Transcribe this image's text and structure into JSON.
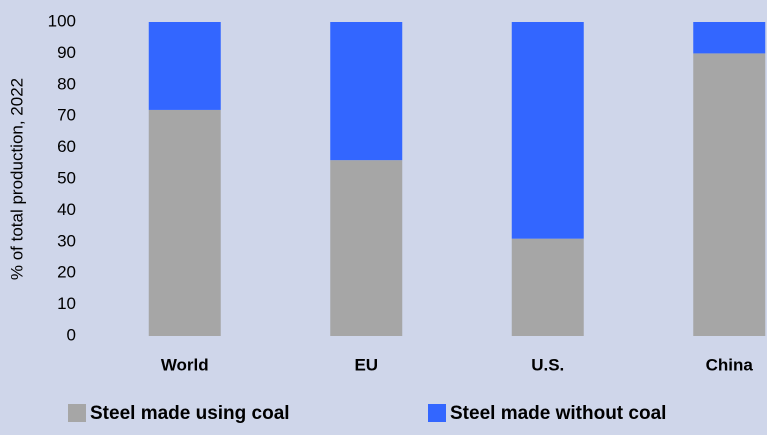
{
  "chart_data": {
    "type": "stacked-bar",
    "y_label": "% of total production, 2022",
    "categories": [
      "World",
      "EU",
      "U.S.",
      "China"
    ],
    "series": [
      {
        "name": "Steel made using coal",
        "color": "#a6a6a6",
        "values": [
          72,
          56,
          31,
          90
        ]
      },
      {
        "name": "Steel made without coal",
        "color": "#3366ff",
        "values": [
          28,
          44,
          69,
          10
        ]
      }
    ],
    "ylim": [
      0,
      100
    ],
    "yticks": [
      0,
      10,
      20,
      30,
      40,
      50,
      60,
      70,
      80,
      90,
      100
    ],
    "grid": false,
    "legend": "bottom"
  }
}
